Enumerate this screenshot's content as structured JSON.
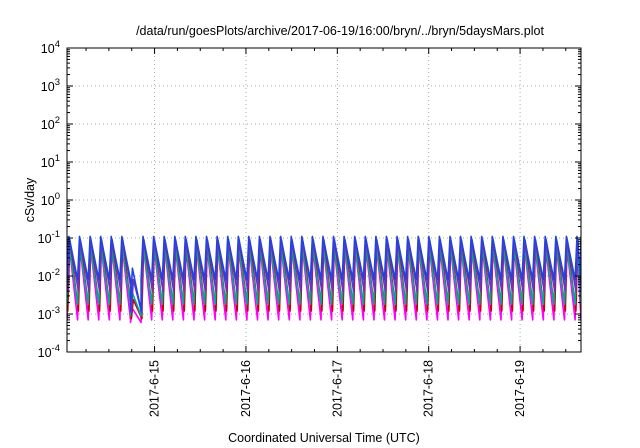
{
  "chart_data": {
    "type": "line",
    "title": "/data/run/goesPlots/archive/2017-06-19/16:00/bryn/../bryn/5daysMars.plot",
    "xlabel": "Coordinated Universal Time (UTC)",
    "ylabel": "cSv/day",
    "yscale": "log",
    "ylim": [
      0.0001,
      10000
    ],
    "xlim": [
      "2017-06-14T01:00",
      "2017-06-19T16:00"
    ],
    "x_ticks": [
      "2017-6-15",
      "2017-6-16",
      "2017-6-17",
      "2017-6-18",
      "2017-6-19"
    ],
    "y_ticks": [
      {
        "base": "10",
        "exp": "-4"
      },
      {
        "base": "10",
        "exp": "-3"
      },
      {
        "base": "10",
        "exp": "-2"
      },
      {
        "base": "10",
        "exp": "-1"
      },
      {
        "base": "10",
        "exp": "0"
      },
      {
        "base": "10",
        "exp": "1"
      },
      {
        "base": "10",
        "exp": "2"
      },
      {
        "base": "10",
        "exp": "3"
      },
      {
        "base": "10",
        "exp": "4"
      }
    ],
    "grid": true,
    "legend": "none",
    "sawtooth": {
      "period_hours": 2.78,
      "peak_values": [
        0.1,
        0.085,
        0.07,
        0.055,
        0.045
      ],
      "trough_values": [
        0.0009,
        0.0011,
        0.0013,
        0.0017,
        0.0022
      ],
      "decay_gap": {
        "start": "2017-06-14T17:00",
        "end": "2017-06-14T19:10",
        "floor": 0.0006
      }
    },
    "series": [
      {
        "color": "#ff00ff",
        "peak": 0.075,
        "trough": 0.0007
      },
      {
        "color": "#cc0000",
        "peak": 0.08,
        "trough": 0.0012
      },
      {
        "color": "#00aa99",
        "peak": 0.065,
        "trough": 0.0018
      },
      {
        "color": "#6633cc",
        "peak": 0.09,
        "trough": 0.004
      },
      {
        "color": "#2244dd",
        "peak": 0.11,
        "trough": 0.008
      }
    ]
  }
}
